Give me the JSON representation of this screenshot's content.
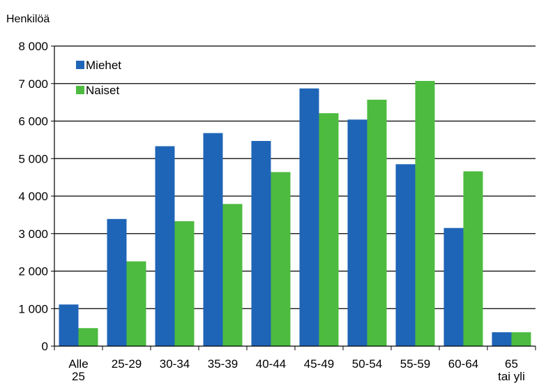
{
  "chart_data": {
    "type": "bar",
    "ylabel": "Henkilöä",
    "ylim": [
      0,
      8000
    ],
    "yticks": [
      0,
      1000,
      2000,
      3000,
      4000,
      5000,
      6000,
      7000,
      8000
    ],
    "ytick_labels": [
      "0",
      "1 000",
      "2 000",
      "3 000",
      "4 000",
      "5 000",
      "6 000",
      "7 000",
      "8 000"
    ],
    "categories": [
      [
        "Alle",
        "25"
      ],
      [
        "25-29"
      ],
      [
        "30-34"
      ],
      [
        "35-39"
      ],
      [
        "40-44"
      ],
      [
        "45-49"
      ],
      [
        "50-54"
      ],
      [
        "55-59"
      ],
      [
        "60-64"
      ],
      [
        "65",
        "tai yli"
      ]
    ],
    "series": [
      {
        "name": "Miehet",
        "color": "#1f65b7",
        "values": [
          1110,
          3390,
          5330,
          5680,
          5470,
          6870,
          6040,
          4850,
          3150,
          370
        ]
      },
      {
        "name": "Naiset",
        "color": "#4dbb3f",
        "values": [
          480,
          2260,
          3330,
          3790,
          4640,
          6210,
          6570,
          7070,
          4660,
          370
        ]
      }
    ],
    "grid": "horizontal",
    "legend_position": "top-left"
  }
}
